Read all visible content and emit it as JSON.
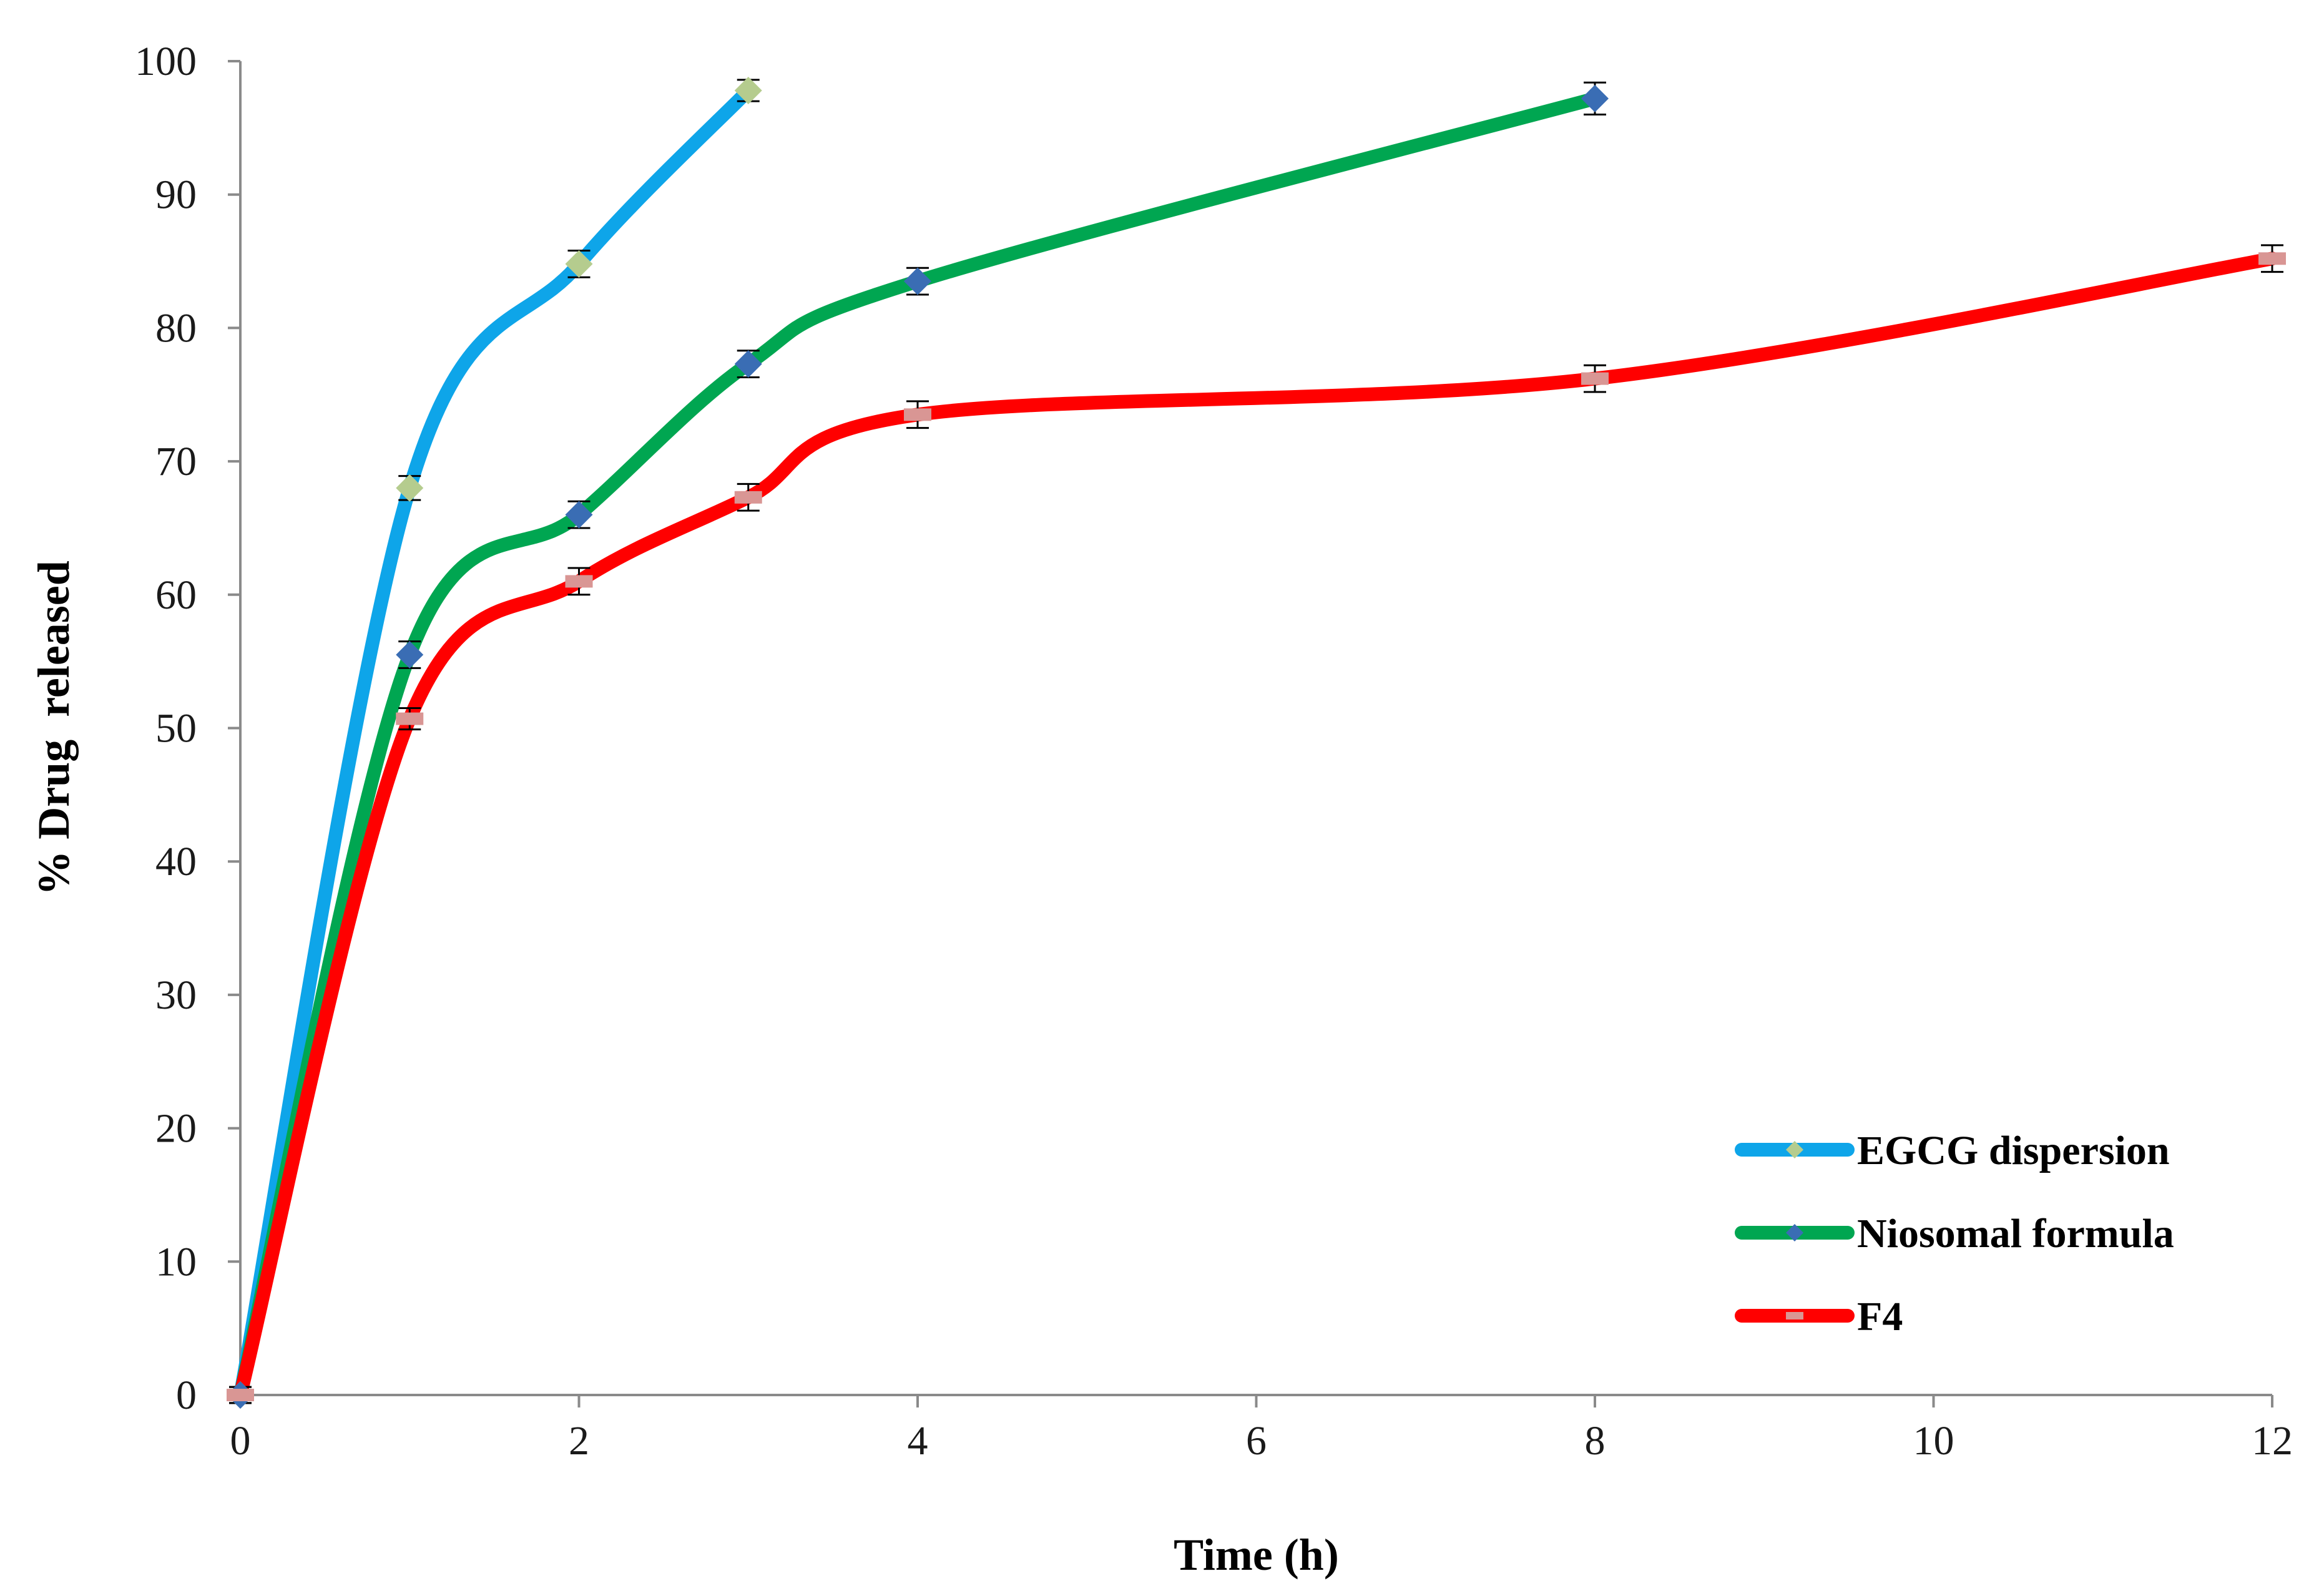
{
  "chart_data": {
    "type": "line",
    "title": "",
    "xlabel": "Time (h)",
    "ylabel": "% Drug  released",
    "xlim": [
      0,
      12
    ],
    "ylim": [
      0,
      100
    ],
    "x_ticks": [
      0,
      2,
      4,
      6,
      8,
      10,
      12
    ],
    "y_ticks": [
      0,
      10,
      20,
      30,
      40,
      50,
      60,
      70,
      80,
      90,
      100
    ],
    "grid": false,
    "legend_position": "bottom-right",
    "series": [
      {
        "name": "EGCG dispersion",
        "color": "#0EA5E9",
        "marker": "diamond",
        "marker_color": "#B5CC8E",
        "x": [
          0,
          1,
          2,
          3
        ],
        "y": [
          0,
          68,
          84.8,
          97.8
        ],
        "error": [
          0.6,
          0.9,
          1.0,
          0.8
        ]
      },
      {
        "name": "Niosomal formula",
        "color": "#00A651",
        "marker": "diamond",
        "marker_color": "#3A6DB4",
        "x": [
          0,
          1,
          2,
          3,
          4,
          8
        ],
        "y": [
          0,
          55.5,
          66,
          77.3,
          83.5,
          97.2
        ],
        "error": [
          0.6,
          1.0,
          1.0,
          1.0,
          1.0,
          1.2
        ]
      },
      {
        "name": "F4",
        "color": "#FF0000",
        "marker": "dash",
        "marker_color": "#D99694",
        "x": [
          0,
          1,
          2,
          3,
          4,
          8,
          12
        ],
        "y": [
          0,
          50.7,
          61,
          67.3,
          73.5,
          76.2,
          85.2
        ],
        "error": [
          0.6,
          0.8,
          1.0,
          1.0,
          1.0,
          1.0,
          1.0
        ]
      }
    ]
  }
}
